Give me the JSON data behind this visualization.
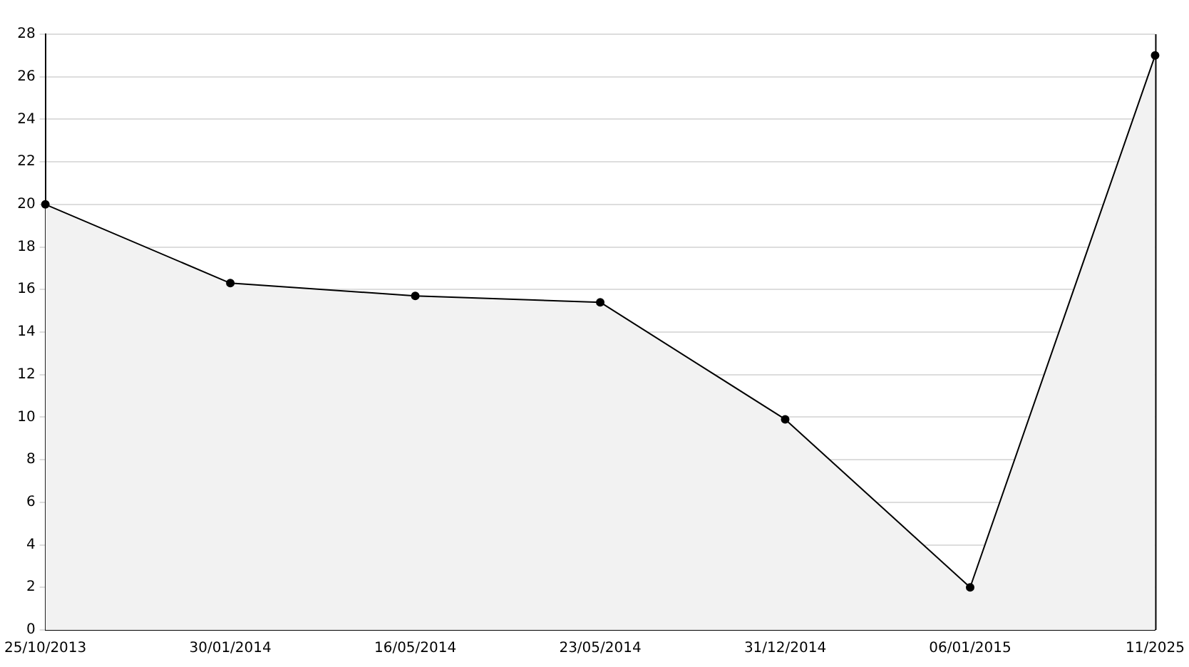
{
  "chart_data": {
    "type": "area",
    "categories": [
      "25/10/2013",
      "30/01/2014",
      "16/05/2014",
      "23/05/2014",
      "31/12/2014",
      "06/01/2015",
      "11/2025"
    ],
    "series": [
      {
        "color": "#000000",
        "values": [
          20,
          16.3,
          15.7,
          15.4,
          9.9,
          2,
          27
        ]
      }
    ],
    "ylim": [
      0,
      28
    ],
    "yticks": [
      0,
      2,
      4,
      6,
      8,
      10,
      12,
      14,
      16,
      18,
      20,
      22,
      24,
      26,
      28
    ],
    "grid": "y",
    "marker": "circle",
    "legend": false
  }
}
